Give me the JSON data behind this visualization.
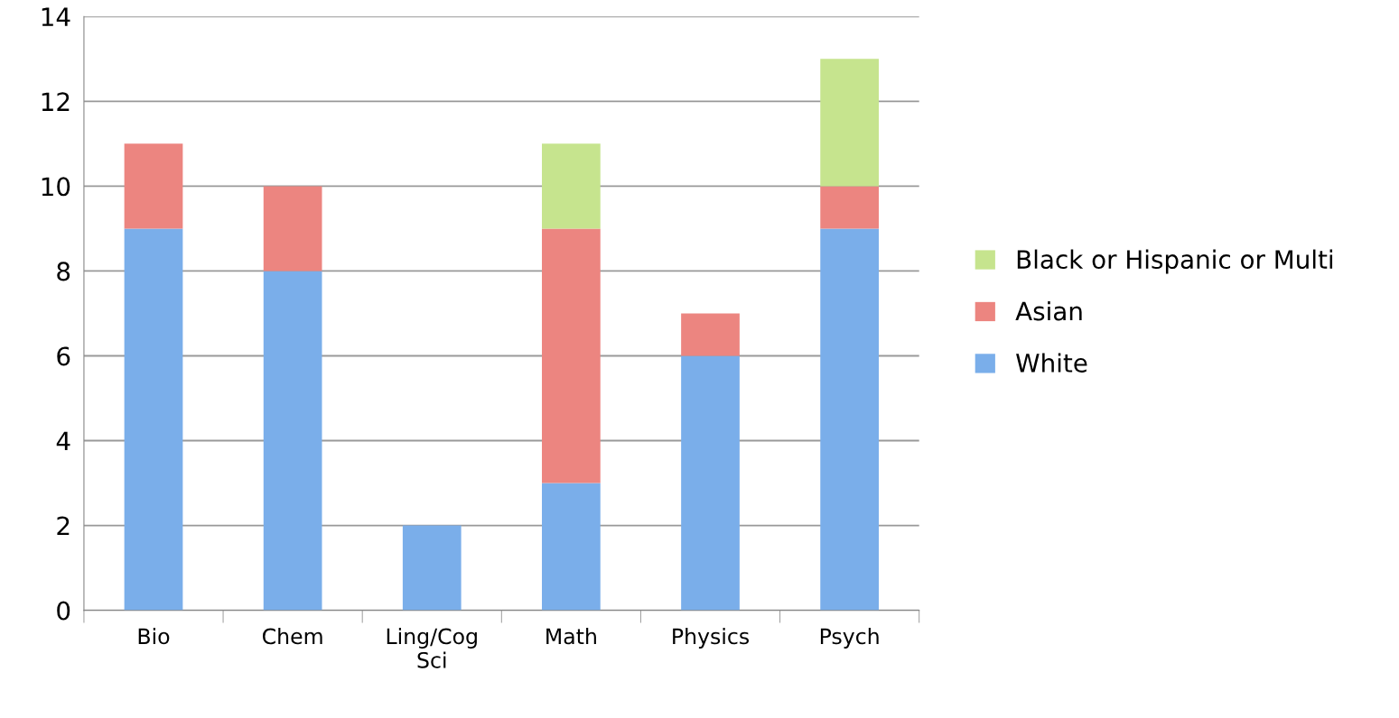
{
  "chart_data": {
    "type": "bar",
    "stacked": true,
    "categories": [
      "Bio",
      "Chem",
      "Ling/Cog\nSci",
      "Math",
      "Physics",
      "Psych"
    ],
    "series": [
      {
        "name": "White",
        "color": "#7aaeea",
        "values": [
          9,
          8,
          2,
          3,
          6,
          9
        ]
      },
      {
        "name": "Asian",
        "color": "#ec8580",
        "values": [
          2,
          2,
          0,
          6,
          1,
          1
        ]
      },
      {
        "name": "Black or Hispanic or Multi",
        "color": "#c6e48e",
        "values": [
          0,
          0,
          0,
          2,
          0,
          3
        ]
      }
    ],
    "ylim": [
      0,
      14
    ],
    "yticks": [
      0,
      2,
      4,
      6,
      8,
      10,
      12,
      14
    ],
    "grid": "y",
    "legend": "right"
  }
}
